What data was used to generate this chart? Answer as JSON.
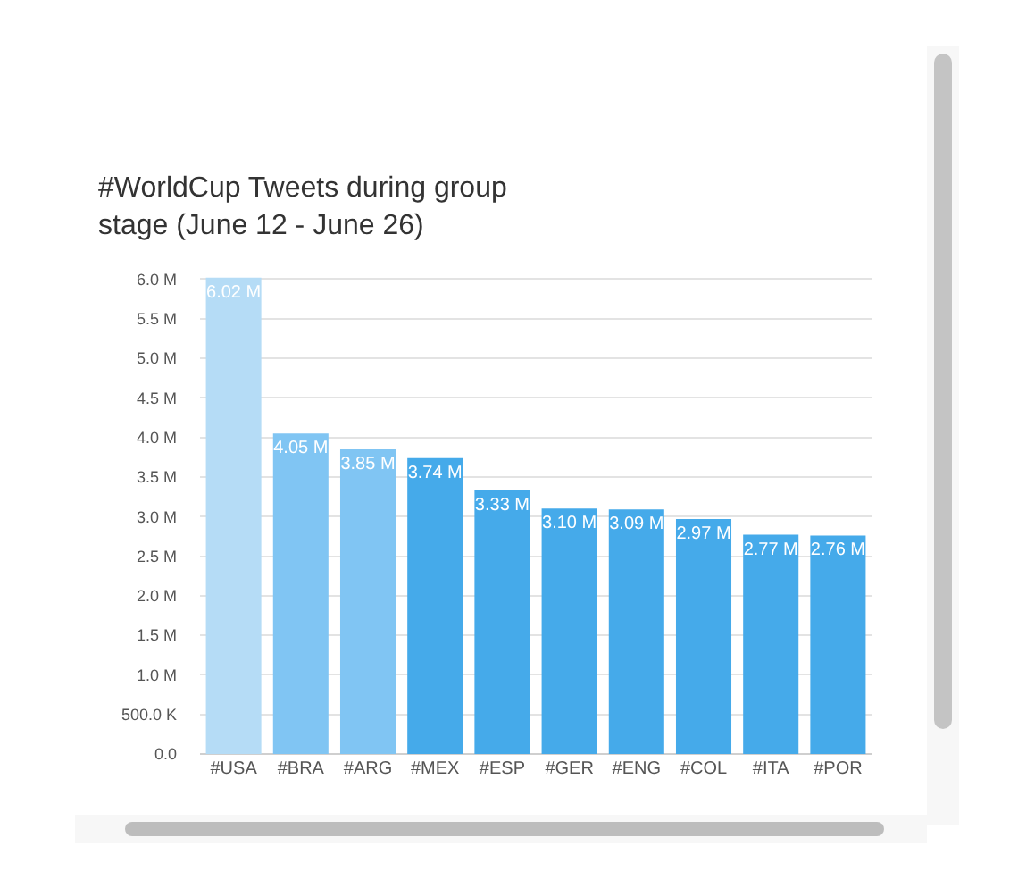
{
  "chart_data": {
    "type": "bar",
    "title": "#WorldCup Tweets during group stage (June 12 - June 26)",
    "categories": [
      "#USA",
      "#BRA",
      "#ARG",
      "#MEX",
      "#ESP",
      "#GER",
      "#ENG",
      "#COL",
      "#ITA",
      "#POR"
    ],
    "values": [
      6.02,
      4.05,
      3.85,
      3.74,
      3.33,
      3.1,
      3.09,
      2.97,
      2.77,
      2.76
    ],
    "colors": [
      "#b5dcf6",
      "#80c5f3",
      "#80c5f3",
      "#45aaea",
      "#45aaea",
      "#45aaea",
      "#45aaea",
      "#45aaea",
      "#45aaea",
      "#45aaea"
    ],
    "value_labels": [
      "6.02 M",
      "4.05 M",
      "3.85 M",
      "3.74 M",
      "3.33 M",
      "3.10 M",
      "3.09 M",
      "2.97 M",
      "2.77 M",
      "2.76 M"
    ],
    "ylim": [
      0,
      6.05
    ],
    "yticks": [
      {
        "value": 0,
        "label": "0.0"
      },
      {
        "value": 0.5,
        "label": "500.0 K"
      },
      {
        "value": 1,
        "label": "1.0 M"
      },
      {
        "value": 1.5,
        "label": "1.5 M"
      },
      {
        "value": 2,
        "label": "2.0 M"
      },
      {
        "value": 2.5,
        "label": "2.5 M"
      },
      {
        "value": 3,
        "label": "3.0 M"
      },
      {
        "value": 3.5,
        "label": "3.5 M"
      },
      {
        "value": 4,
        "label": "4.0 M"
      },
      {
        "value": 4.5,
        "label": "4.5 M"
      },
      {
        "value": 5,
        "label": "5.0 M"
      },
      {
        "value": 5.5,
        "label": "5.5 M"
      },
      {
        "value": 6,
        "label": "6.0 M"
      }
    ],
    "grid": "y"
  }
}
